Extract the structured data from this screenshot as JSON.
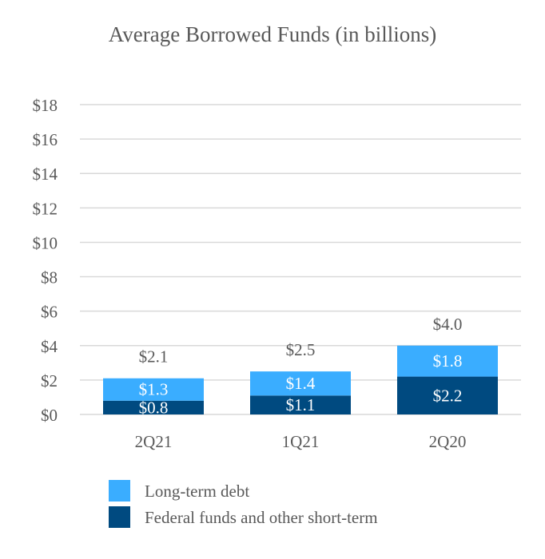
{
  "chart_data": {
    "type": "bar",
    "stacked": true,
    "title": "Average Borrowed Funds (in billions)",
    "categories": [
      "2Q21",
      "1Q21",
      "2Q20"
    ],
    "series": [
      {
        "name": "Federal funds and other short-term",
        "values": [
          0.8,
          1.1,
          2.2
        ],
        "labels": [
          "$0.8",
          "$1.1",
          "$2.2"
        ],
        "color": "#004a80"
      },
      {
        "name": "Long-term debt",
        "values": [
          1.3,
          1.4,
          1.8
        ],
        "labels": [
          "$1.3",
          "$1.4",
          "$1.8"
        ],
        "color": "#3aadff"
      }
    ],
    "totals": [
      2.1,
      2.5,
      4.0
    ],
    "total_labels": [
      "$2.1",
      "$2.5",
      "$4.0"
    ],
    "ylim": [
      0,
      18
    ],
    "yticks": [
      0,
      2,
      4,
      6,
      8,
      10,
      12,
      14,
      16,
      18
    ],
    "ytick_labels": [
      "$0",
      "$2",
      "$4",
      "$6",
      "$8",
      "$10",
      "$12",
      "$14",
      "$16",
      "$18"
    ],
    "xlabel": "",
    "ylabel": "",
    "grid": true,
    "legend": {
      "position": "bottom",
      "order": [
        "Long-term debt",
        "Federal funds and other short-term"
      ]
    }
  }
}
